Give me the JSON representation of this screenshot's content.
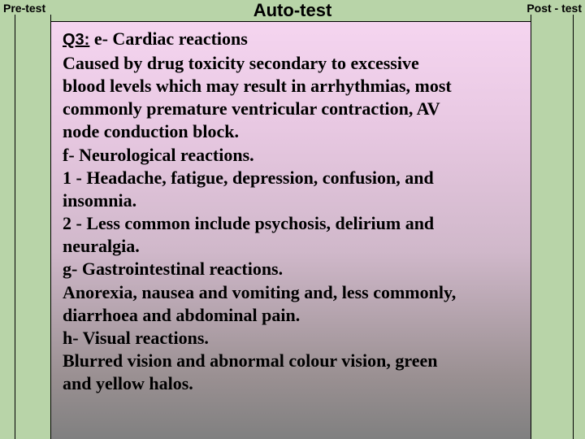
{
  "labels": {
    "pre_test": "Pre-test",
    "post_test": "Post - test",
    "auto_test": "Auto-test"
  },
  "q3": {
    "label": "Q3:",
    "first_line": "   e-  Cardiac reactions"
  },
  "body": {
    "p1_l1": "  Caused by drug toxicity secondary to excessive",
    "p1_l2": "blood levels which may result in arrhythmias, most",
    "p1_l3": "commonly premature ventricular contraction, AV",
    "p1_l4": "node conduction block.",
    "p2": "f-  Neurological reactions.",
    "p3_l1": "   1 -  Headache, fatigue, depression, confusion, and",
    "p3_l2": "insomnia.",
    "p4_l1": "   2 -  Less common include psychosis, delirium and",
    "p4_l2": "neuralgia.",
    "p5": "g-  Gastrointestinal reactions.",
    "p6_l1": "  Anorexia, nausea and vomiting and, less commonly,",
    "p6_l2": "diarrhoea and abdominal pain.",
    "p7": "h- Visual reactions.",
    "p8_l1": "  Blurred vision and abnormal colour vision, green",
    "p8_l2": "and yellow halos."
  },
  "colors": {
    "bg_green": "#b8d4a8",
    "grad_top": "#f5d5f0",
    "grad_bottom": "#808080",
    "line": "#000000"
  }
}
